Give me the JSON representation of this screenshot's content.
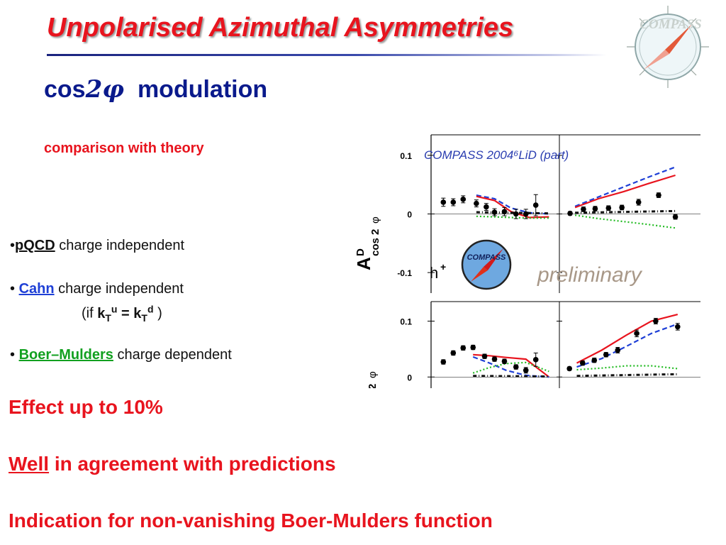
{
  "slide": {
    "title": "Unpolarised Azimuthal Asymmetries",
    "logo_text": "COMPASS",
    "subtitle": {
      "prefix": "cos",
      "two": "2",
      "phi": "φ",
      "suffix": "modulation"
    },
    "comparison": "comparison with theory",
    "bullets": [
      {
        "marker": "•",
        "keyword": "pQCD",
        "text": " charge independent"
      },
      {
        "marker": "• ",
        "keyword": "Cahn",
        "text": " charge independent"
      },
      {
        "marker": "• ",
        "keyword": "Boer–Mulders",
        "text": " charge dependent"
      }
    ],
    "cahn_condition": {
      "open": "(if ",
      "k": "k",
      "T": "T",
      "u": "u",
      "eq": " = ",
      "d": "d",
      "close": " )"
    },
    "conclusions": {
      "c1": "Effect up to 10%",
      "c2_underlined": "Well",
      "c2_rest": " in agreement with predictions",
      "c3": "Indication for non-vanishing Boer-Mulders function"
    },
    "colors": {
      "title": "#e8141e",
      "subtitle": "#0a1a8c",
      "cahn": "#1e3fd6",
      "boer_mulders": "#12a020",
      "conclusions": "#e8141e"
    }
  },
  "chart_data": [
    {
      "type": "scatter",
      "panel": "top",
      "title": "COMPASS 2004⁶LiD (part)",
      "ylabel_main": "A",
      "ylabel_sup": "D",
      "ylabel_sub": "cos 2",
      "ylabel_phi": "φ",
      "particle": "h",
      "particle_charge": "+",
      "watermark": "preliminary",
      "logo_text": "COMPASS",
      "yticks": [
        {
          "value": 0.1,
          "label": "0.1"
        },
        {
          "value": 0,
          "label": "0"
        },
        {
          "value": -0.1,
          "label": "-0.1"
        }
      ],
      "ylim": [
        -0.135,
        0.135
      ],
      "subplots": [
        {
          "x": [
            0.4,
            1.0,
            1.6,
            2.4,
            3.0,
            3.5,
            4.1,
            4.8,
            5.4,
            6.0
          ],
          "y": [
            0.02,
            0.02,
            0.025,
            0.018,
            0.012,
            0.003,
            0.004,
            0.0,
            0.0,
            0.015
          ],
          "err": [
            0.007,
            0.006,
            0.006,
            0.006,
            0.006,
            0.006,
            0.007,
            0.008,
            0.008,
            0.018
          ],
          "curves": [
            {
              "name": "Cahn",
              "color": "#1e3fd6",
              "style": "dashed",
              "x": [
                2.4,
                3.5,
                4.5,
                5.6,
                6.8
              ],
              "y": [
                0.032,
                0.026,
                0.01,
                0.002,
                0.0
              ]
            },
            {
              "name": "Cahn + Boer-Mulders",
              "color": "#e8141e",
              "style": "solid",
              "x": [
                2.4,
                3.5,
                4.5,
                5.6,
                6.8
              ],
              "y": [
                0.03,
                0.023,
                0.004,
                -0.006,
                -0.005
              ]
            },
            {
              "name": "Boer-Mulders",
              "color": "#22bb22",
              "style": "dotted",
              "x": [
                2.4,
                3.5,
                4.5,
                5.6,
                6.8
              ],
              "y": [
                -0.004,
                -0.005,
                -0.006,
                -0.007,
                -0.007
              ]
            },
            {
              "name": "pQCD",
              "color": "#111111",
              "style": "dashdot",
              "x": [
                2.4,
                6.8
              ],
              "y": [
                0.003,
                0.001
              ]
            }
          ]
        },
        {
          "x": [
            0.3,
            1.1,
            1.8,
            2.6,
            3.4,
            4.4,
            5.6,
            6.6
          ],
          "y": [
            0.001,
            0.008,
            0.009,
            0.01,
            0.011,
            0.02,
            0.032,
            -0.005
          ],
          "err": [
            0.003,
            0.004,
            0.004,
            0.004,
            0.004,
            0.005,
            0.004,
            0.004
          ],
          "curves": [
            {
              "name": "Cahn",
              "color": "#1e3fd6",
              "style": "dashed",
              "x": [
                0.6,
                2.0,
                3.5,
                5.0,
                6.6
              ],
              "y": [
                0.013,
                0.029,
                0.046,
                0.063,
                0.08
              ]
            },
            {
              "name": "Cahn + Boer-Mulders",
              "color": "#e8141e",
              "style": "solid",
              "x": [
                0.6,
                2.0,
                3.5,
                5.0,
                6.6
              ],
              "y": [
                0.011,
                0.026,
                0.038,
                0.052,
                0.066
              ]
            },
            {
              "name": "Boer-Mulders",
              "color": "#22bb22",
              "style": "dotted",
              "x": [
                0.6,
                2.0,
                3.5,
                5.0,
                6.6
              ],
              "y": [
                -0.002,
                -0.008,
                -0.013,
                -0.018,
                -0.024
              ]
            },
            {
              "name": "pQCD",
              "color": "#111111",
              "style": "dashdot",
              "x": [
                0.6,
                6.6
              ],
              "y": [
                0.002,
                0.005
              ]
            }
          ]
        }
      ]
    },
    {
      "type": "scatter",
      "panel": "bottom",
      "ylabel_sub": "2",
      "ylabel_phi": "φ",
      "yticks": [
        {
          "value": 0.1,
          "label": "0.1"
        },
        {
          "value": 0,
          "label": "0"
        }
      ],
      "ylim": [
        -0.02,
        0.135
      ],
      "subplots": [
        {
          "x": [
            0.4,
            1.0,
            1.6,
            2.2,
            2.9,
            3.5,
            4.1,
            4.8,
            5.4,
            6.0
          ],
          "y": [
            0.027,
            0.043,
            0.052,
            0.053,
            0.037,
            0.032,
            0.028,
            0.018,
            0.012,
            0.031
          ],
          "err": [
            0.004,
            0.004,
            0.004,
            0.004,
            0.004,
            0.004,
            0.004,
            0.004,
            0.005,
            0.012
          ],
          "curves": [
            {
              "name": "Cahn + Boer-Mulders",
              "color": "#e8141e",
              "style": "solid",
              "x": [
                2.2,
                3.2,
                4.2,
                5.4,
                6.8
              ],
              "y": [
                0.04,
                0.038,
                0.035,
                0.032,
                0.0
              ]
            },
            {
              "name": "Cahn",
              "color": "#1e3fd6",
              "style": "dashed",
              "x": [
                2.2,
                3.2,
                4.2,
                5.4,
                6.8
              ],
              "y": [
                0.036,
                0.025,
                0.012,
                0.003,
                0.0
              ]
            },
            {
              "name": "Boer-Mulders",
              "color": "#22bb22",
              "style": "dotted",
              "x": [
                2.2,
                3.2,
                4.2,
                5.4,
                6.8
              ],
              "y": [
                0.007,
                0.017,
                0.024,
                0.026,
                0.01
              ]
            },
            {
              "name": "pQCD",
              "color": "#111111",
              "style": "dashdot",
              "x": [
                2.2,
                6.8
              ],
              "y": [
                0.002,
                0.001
              ]
            }
          ]
        },
        {
          "x": [
            0.3,
            1.2,
            2.0,
            2.8,
            3.6,
            4.9,
            6.2,
            7.7
          ],
          "y": [
            0.015,
            0.025,
            0.03,
            0.04,
            0.048,
            0.078,
            0.1,
            0.09
          ],
          "err": [
            0.003,
            0.004,
            0.004,
            0.004,
            0.005,
            0.006,
            0.005,
            0.006
          ],
          "curves": [
            {
              "name": "Cahn + Boer-Mulders",
              "color": "#e8141e",
              "style": "solid",
              "x": [
                0.8,
                2.5,
                4.2,
                5.9,
                7.7
              ],
              "y": [
                0.025,
                0.048,
                0.075,
                0.1,
                0.112
              ]
            },
            {
              "name": "Cahn",
              "color": "#1e3fd6",
              "style": "dashed",
              "x": [
                0.8,
                2.5,
                4.2,
                5.9,
                7.7
              ],
              "y": [
                0.018,
                0.033,
                0.055,
                0.078,
                0.095
              ]
            },
            {
              "name": "Boer-Mulders",
              "color": "#22bb22",
              "style": "dotted",
              "x": [
                0.8,
                2.5,
                4.2,
                5.9,
                7.7
              ],
              "y": [
                0.013,
                0.016,
                0.02,
                0.02,
                0.015
              ]
            },
            {
              "name": "pQCD",
              "color": "#111111",
              "style": "dashdot",
              "x": [
                0.8,
                7.7
              ],
              "y": [
                0.002,
                0.005
              ]
            }
          ]
        }
      ]
    }
  ]
}
